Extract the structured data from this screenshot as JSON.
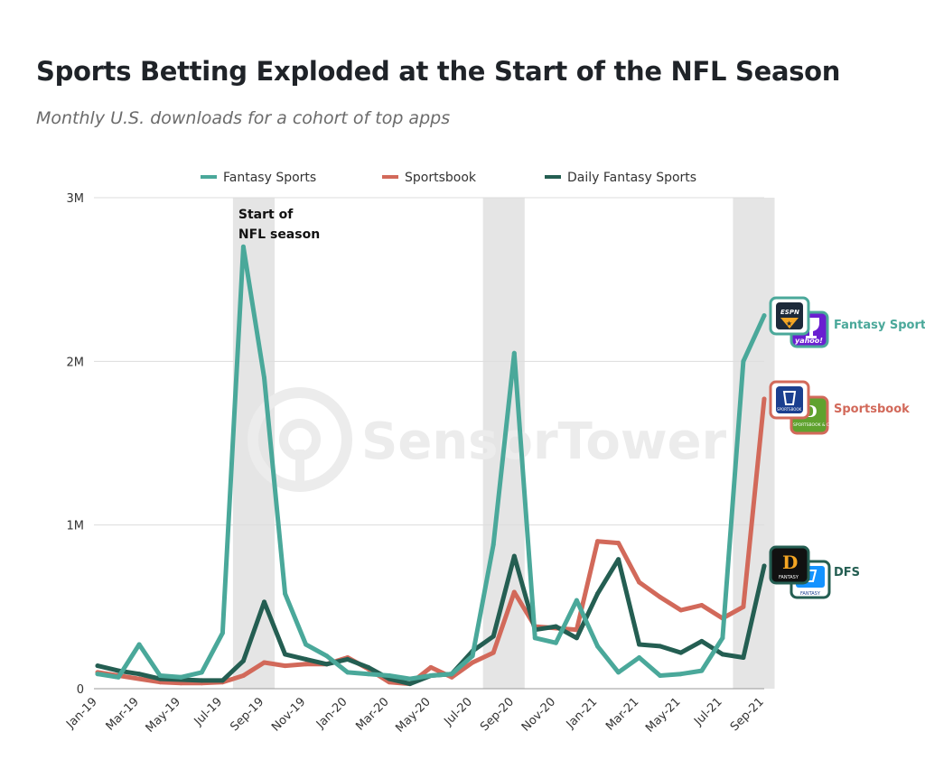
{
  "header": {
    "title": "Sports Betting Exploded at the Start of the NFL Season",
    "subtitle": "Monthly U.S. downloads for a cohort of top apps"
  },
  "watermark": "SensorTower",
  "colors": {
    "fantasy": "#4aa89a",
    "sportsbook": "#d2695a",
    "dfs": "#245e52",
    "grid": "#dcdcdc",
    "band": "#e5e5e5"
  },
  "chart_data": {
    "type": "line",
    "title": "Sports Betting Exploded at the Start of the NFL Season",
    "subtitle": "Monthly U.S. downloads for a cohort of top apps",
    "xlabel": "",
    "ylabel": "",
    "ylim": [
      0,
      3000000
    ],
    "y_ticks": [
      "0",
      "1M",
      "2M",
      "3M"
    ],
    "y_tick_values": [
      0,
      1000000,
      2000000,
      3000000
    ],
    "grid": true,
    "legend_position": "top",
    "x": [
      "Jan-19",
      "Feb-19",
      "Mar-19",
      "Apr-19",
      "May-19",
      "Jun-19",
      "Jul-19",
      "Aug-19",
      "Sep-19",
      "Oct-19",
      "Nov-19",
      "Dec-19",
      "Jan-20",
      "Feb-20",
      "Mar-20",
      "Apr-20",
      "May-20",
      "Jun-20",
      "Jul-20",
      "Aug-20",
      "Sep-20",
      "Oct-20",
      "Nov-20",
      "Dec-20",
      "Jan-21",
      "Feb-21",
      "Mar-21",
      "Apr-21",
      "May-21",
      "Jun-21",
      "Jul-21",
      "Aug-21",
      "Sep-21"
    ],
    "x_tick_labels": [
      "Jan-19",
      "Mar-19",
      "May-19",
      "Jul-19",
      "Sep-19",
      "Nov-19",
      "Jan-20",
      "Mar-20",
      "May-20",
      "Jul-20",
      "Sep-20",
      "Nov-20",
      "Jan-21",
      "Mar-21",
      "May-21",
      "Jul-21",
      "Sep-21"
    ],
    "series": [
      {
        "name": "Fantasy Sports",
        "color": "#4aa89a",
        "values": [
          90000,
          70000,
          270000,
          80000,
          70000,
          100000,
          340000,
          2700000,
          1900000,
          580000,
          270000,
          200000,
          100000,
          90000,
          80000,
          60000,
          80000,
          90000,
          200000,
          880000,
          2050000,
          310000,
          280000,
          540000,
          260000,
          100000,
          190000,
          80000,
          90000,
          110000,
          310000,
          2000000,
          2280000
        ]
      },
      {
        "name": "Sportsbook",
        "color": "#d2695a",
        "values": [
          100000,
          80000,
          60000,
          40000,
          35000,
          35000,
          40000,
          80000,
          160000,
          140000,
          150000,
          150000,
          190000,
          120000,
          40000,
          30000,
          130000,
          70000,
          160000,
          220000,
          590000,
          380000,
          370000,
          360000,
          900000,
          890000,
          650000,
          560000,
          480000,
          510000,
          430000,
          500000,
          1770000
        ]
      },
      {
        "name": "Daily Fantasy Sports",
        "color": "#245e52",
        "values": [
          140000,
          110000,
          90000,
          60000,
          55000,
          50000,
          50000,
          170000,
          530000,
          210000,
          180000,
          150000,
          180000,
          130000,
          60000,
          30000,
          80000,
          90000,
          230000,
          320000,
          810000,
          360000,
          380000,
          310000,
          580000,
          790000,
          270000,
          260000,
          220000,
          290000,
          210000,
          190000,
          750000
        ]
      }
    ],
    "highlight_periods": [
      {
        "from": "Aug-19",
        "to": "Sep-19"
      },
      {
        "from": "Aug-20",
        "to": "Sep-20"
      },
      {
        "from": "Aug-21",
        "to": "Sep-21"
      }
    ],
    "annotation": {
      "line1": "Start of",
      "line2": "NFL season",
      "at": "Aug-19"
    },
    "end_labels": [
      {
        "text": "Fantasy Sports",
        "series": "Fantasy Sports",
        "icons": [
          "espn-fantasy-app-icon",
          "yahoo-fantasy-app-icon"
        ],
        "icon_text": [
          "ESPN",
          "yahoo!"
        ]
      },
      {
        "text": "Sportsbook",
        "series": "Sportsbook",
        "icons": [
          "fanduel-sportsbook-app-icon",
          "draftkings-sportsbook-app-icon"
        ],
        "icon_text": [
          "SPORTSBOOK",
          "SPORTSBOOK & CASINO"
        ]
      },
      {
        "text": "DFS",
        "series": "Daily Fantasy Sports",
        "icons": [
          "draftkings-fantasy-app-icon",
          "fanduel-fantasy-app-icon"
        ],
        "icon_text": [
          "FANTASY",
          "FANTASY"
        ]
      }
    ]
  }
}
